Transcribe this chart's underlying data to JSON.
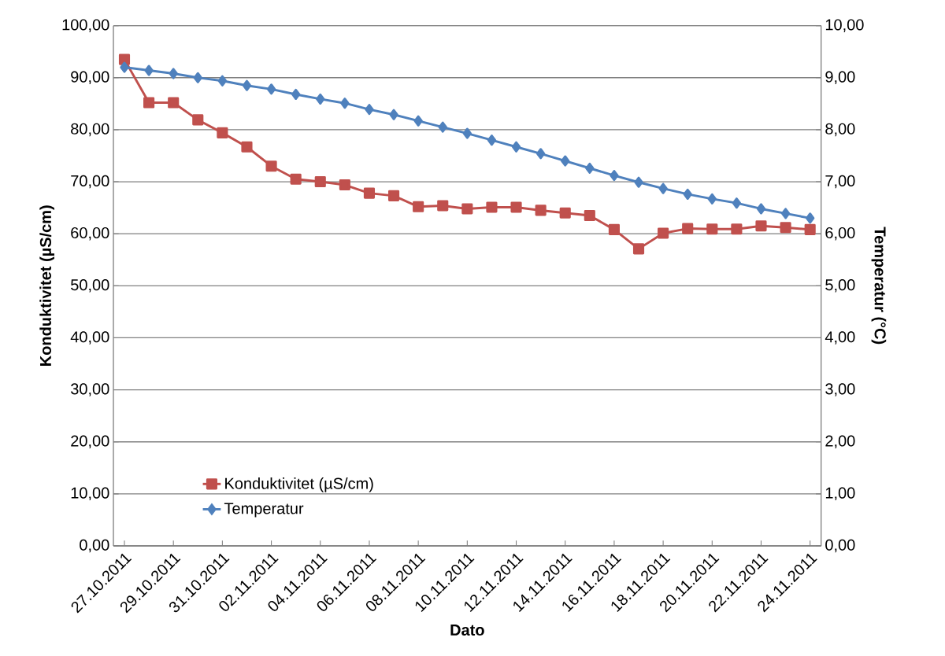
{
  "chart_data": {
    "type": "line",
    "xlabel": "Dato",
    "ylabel": "Konduktivitet (µS/cm)",
    "y2label": "Temperatur (°C)",
    "categories": [
      "27.10.2011",
      null,
      "29.10.2011",
      null,
      "31.10.2011",
      null,
      "02.11.2011",
      null,
      "04.11.2011",
      null,
      "06.11.2011",
      null,
      "08.11.2011",
      null,
      "10.11.2011",
      null,
      "12.11.2011",
      null,
      "14.11.2011",
      null,
      "16.11.2011",
      null,
      "18.11.2011",
      null,
      "20.11.2011",
      null,
      "22.11.2011",
      null,
      "24.11.2011"
    ],
    "series": [
      {
        "name": "Konduktivitet (µS/cm)",
        "color": "#c0504d",
        "marker": "square",
        "values": [
          93.5,
          85.2,
          85.2,
          81.9,
          79.4,
          76.7,
          73.0,
          70.5,
          70.0,
          69.4,
          67.8,
          67.3,
          65.2,
          65.4,
          64.8,
          65.1,
          65.1,
          64.5,
          64.0,
          63.5,
          60.8,
          57.1,
          60.1,
          61.0,
          60.9,
          60.9,
          61.5,
          61.2,
          60.8
        ]
      },
      {
        "name": "Temperatur",
        "color": "#4f81bd",
        "marker": "diamond",
        "axis": "y2",
        "values": [
          9.2,
          9.14,
          9.08,
          9.0,
          8.94,
          8.85,
          8.78,
          8.68,
          8.59,
          8.51,
          8.39,
          8.29,
          8.17,
          8.05,
          7.93,
          7.8,
          7.67,
          7.54,
          7.4,
          7.26,
          7.12,
          6.99,
          6.87,
          6.76,
          6.67,
          6.59,
          6.48,
          6.39,
          6.3
        ]
      }
    ],
    "ylim": [
      0,
      100
    ],
    "yticks": [
      {
        "value": 0,
        "label": "0,00"
      },
      {
        "value": 10,
        "label": "10,00"
      },
      {
        "value": 20,
        "label": "20,00"
      },
      {
        "value": 30,
        "label": "30,00"
      },
      {
        "value": 40,
        "label": "40,00"
      },
      {
        "value": 50,
        "label": "50,00"
      },
      {
        "value": 60,
        "label": "60,00"
      },
      {
        "value": 70,
        "label": "70,00"
      },
      {
        "value": 80,
        "label": "80,00"
      },
      {
        "value": 90,
        "label": "90,00"
      },
      {
        "value": 100,
        "label": "100,00"
      }
    ],
    "y2lim": [
      0,
      10
    ],
    "y2ticks": [
      {
        "value": 0,
        "label": "0,00"
      },
      {
        "value": 1,
        "label": "1,00"
      },
      {
        "value": 2,
        "label": "2,00"
      },
      {
        "value": 3,
        "label": "3,00"
      },
      {
        "value": 4,
        "label": "4,00"
      },
      {
        "value": 5,
        "label": "5,00"
      },
      {
        "value": 6,
        "label": "6,00"
      },
      {
        "value": 7,
        "label": "7,00"
      },
      {
        "value": 8,
        "label": "8,00"
      },
      {
        "value": 9,
        "label": "9,00"
      },
      {
        "value": 10,
        "label": "10,00"
      }
    ],
    "grid": "y",
    "legend": "bottom left",
    "line_style": "solid"
  }
}
